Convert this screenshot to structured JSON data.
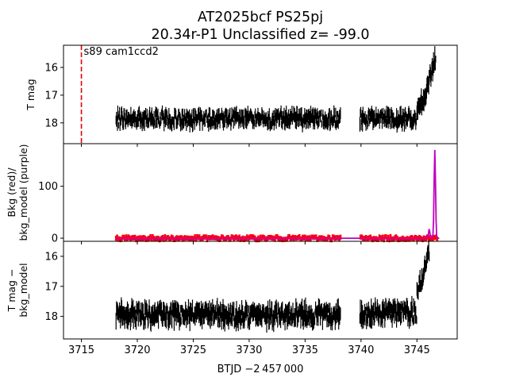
{
  "figure": {
    "title_line1": "AT2025bcf  PS25pj",
    "title_line2": "20.34r-P1 Unclassified z= -99.0",
    "xlabel": "BTJD −2 457 000",
    "annotation": "s89 cam1ccd2"
  },
  "chart_data": [
    {
      "type": "scatter",
      "panel": "top",
      "ylabel": "T mag",
      "xlim": [
        3713.4,
        3748.6
      ],
      "ylim": [
        18.75,
        15.2
      ],
      "y_inverted": true,
      "xticks": [
        3715,
        3720,
        3725,
        3730,
        3735,
        3740,
        3745
      ],
      "yticks": [
        16,
        17,
        18
      ],
      "error_bars": true,
      "segments": [
        {
          "x_start": 3718.1,
          "x_end": 3738.2,
          "y_center": 17.85,
          "y_spread": 0.3
        },
        {
          "x_start": 3739.9,
          "x_end": 3745.0,
          "y_center": 17.85,
          "y_spread": 0.3
        },
        {
          "x_start": 3745.0,
          "x_end": 3746.7,
          "y_center": 16.3,
          "y_spread": 0.35,
          "y_at_start": 17.6,
          "y_at_end": 15.6
        }
      ],
      "vline": {
        "x": 3715.0,
        "color": "#e00000",
        "style": "dashed"
      },
      "color": "#000000"
    },
    {
      "type": "line",
      "panel": "middle",
      "ylabel": "Bkg (red)/\nbkg_model (purple)",
      "xlim": [
        3713.4,
        3748.6
      ],
      "ylim": [
        -6,
        182
      ],
      "xticks": [
        3715,
        3720,
        3725,
        3730,
        3735,
        3740,
        3745
      ],
      "yticks": [
        0,
        100
      ],
      "series": [
        {
          "name": "Bkg (red)",
          "color": "#ff0000",
          "baseline": 0,
          "x_start": 3718.1,
          "x_end": 3746.9,
          "gap": [
            3738.2,
            3739.9
          ],
          "noise": 3
        },
        {
          "name": "bkg_model (purple)",
          "color": "#c000c0",
          "baseline": 0,
          "peak": {
            "x": 3746.6,
            "y": 170
          },
          "small_peak": {
            "x": 3746.1,
            "y": 18
          }
        }
      ]
    },
    {
      "type": "scatter",
      "panel": "bottom",
      "ylabel": "T mag −\nbkg_model",
      "xlim": [
        3713.4,
        3748.6
      ],
      "ylim": [
        18.75,
        15.5
      ],
      "y_inverted": true,
      "xticks": [
        3715,
        3720,
        3725,
        3730,
        3735,
        3740,
        3745
      ],
      "yticks": [
        16,
        17,
        18
      ],
      "error_bars": true,
      "segments": [
        {
          "x_start": 3718.1,
          "x_end": 3738.2,
          "y_center": 17.95,
          "y_spread": 0.35
        },
        {
          "x_start": 3739.9,
          "x_end": 3745.0,
          "y_center": 17.9,
          "y_spread": 0.35
        },
        {
          "x_start": 3745.0,
          "x_end": 3746.1,
          "y_center": 16.3,
          "y_spread": 0.3,
          "y_at_start": 17.1,
          "y_at_end": 15.85
        }
      ],
      "color": "#000000"
    }
  ]
}
